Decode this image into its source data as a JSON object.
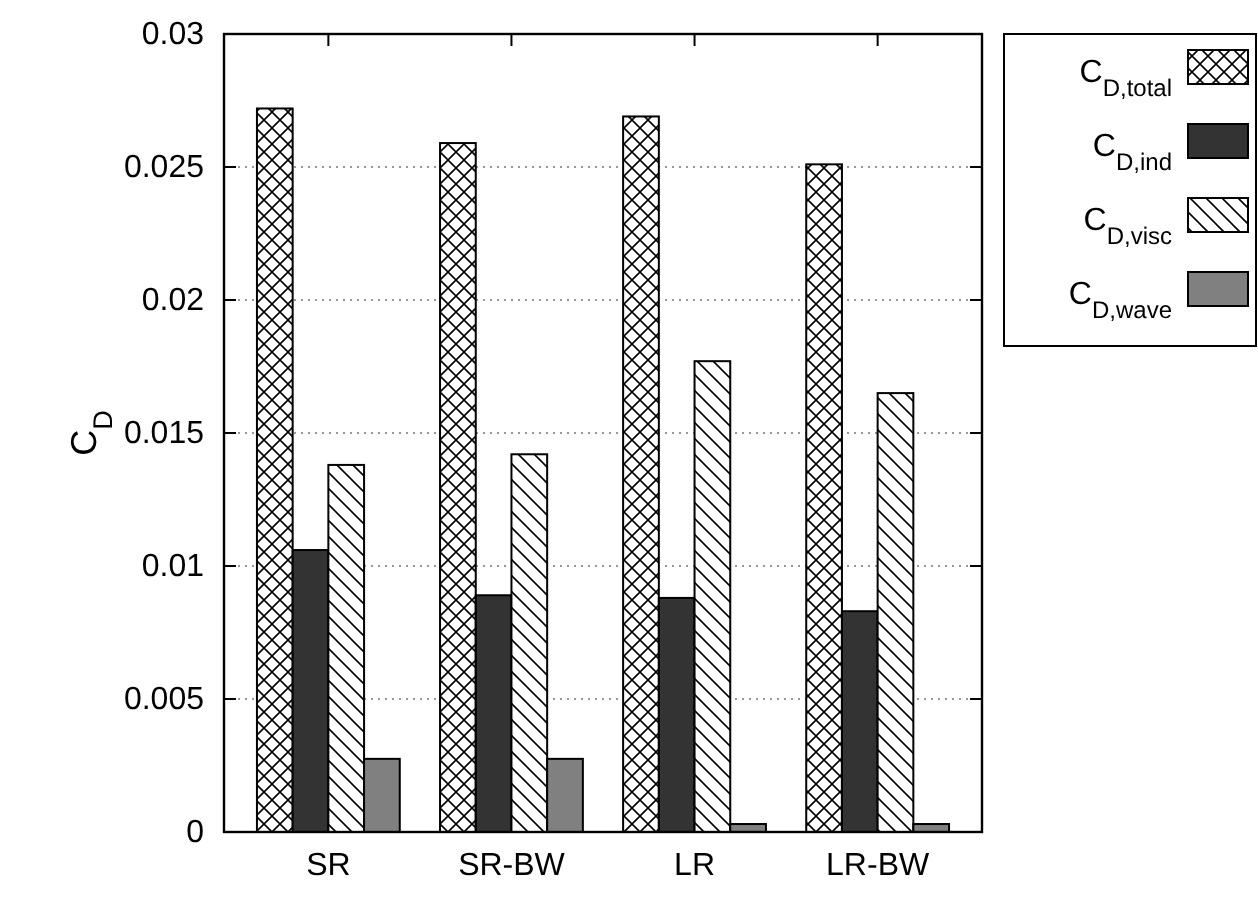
{
  "chart_data": {
    "type": "bar",
    "ylabel": "C$_{D}$",
    "categories": [
      "SR",
      "SR-BW",
      "LR",
      "LR-BW"
    ],
    "series": [
      {
        "name": "C$_{D,total}$",
        "color": "#000000",
        "values": [
          0.0272,
          0.0259,
          0.0269,
          0.0251
        ]
      },
      {
        "name": "C$_{D,ind}$",
        "color": "#333333",
        "values": [
          0.0106,
          0.0089,
          0.0088,
          0.0083
        ]
      },
      {
        "name": "C$_{D,visc}$",
        "color": "#000000",
        "values": [
          0.0138,
          0.0142,
          0.0177,
          0.0165
        ]
      },
      {
        "name": "C$_{D,wave}$",
        "color": "#808080",
        "values": [
          0.00275,
          0.00275,
          0.0003,
          0.0003
        ]
      }
    ],
    "ylim": [
      0,
      0.03
    ],
    "yticks": [
      0,
      0.005,
      0.01,
      0.015,
      0.02,
      0.025,
      0.03
    ],
    "grid": "y",
    "legend": "top right"
  }
}
